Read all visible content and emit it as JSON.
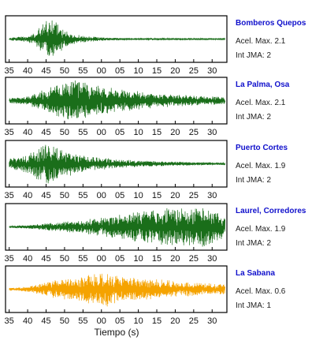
{
  "chart_data": {
    "type": "line",
    "xlabel": "Tiempo (s)",
    "x_ticks": [
      "35",
      "40",
      "45",
      "50",
      "55",
      "00",
      "05",
      "10",
      "15",
      "20",
      "25",
      "30"
    ],
    "series_colors": {
      "green": "#1a6e1a",
      "orange": "#f5a300"
    },
    "panels": [
      {
        "name": "Bomberos Quepos",
        "accel_label": "Acel. Max. 2.1",
        "jma_label": "Int JMA: 2",
        "accel": 2.1,
        "jma": 2,
        "color": "green",
        "envelope": [
          [
            35,
            0.06
          ],
          [
            40,
            0.15
          ],
          [
            42,
            0.3
          ],
          [
            44,
            0.75
          ],
          [
            46,
            1.0
          ],
          [
            48,
            0.8
          ],
          [
            50,
            0.45
          ],
          [
            52,
            0.25
          ],
          [
            56,
            0.15
          ],
          [
            60,
            0.08
          ],
          [
            65,
            0.05
          ],
          [
            93,
            0.04
          ]
        ]
      },
      {
        "name": "La Palma, Osa",
        "accel_label": "Acel. Max. 2.1",
        "jma_label": "Int JMA: 2",
        "accel": 2.1,
        "jma": 2,
        "color": "green",
        "envelope": [
          [
            35,
            0.12
          ],
          [
            40,
            0.22
          ],
          [
            44,
            0.5
          ],
          [
            47,
            0.7
          ],
          [
            50,
            0.9
          ],
          [
            53,
            1.0
          ],
          [
            56,
            0.85
          ],
          [
            60,
            0.7
          ],
          [
            65,
            0.55
          ],
          [
            70,
            0.45
          ],
          [
            75,
            0.35
          ],
          [
            80,
            0.3
          ],
          [
            88,
            0.22
          ],
          [
            93,
            0.18
          ]
        ]
      },
      {
        "name": "Puerto Cortes",
        "accel_label": "Acel. Max. 1.9",
        "jma_label": "Int JMA: 2",
        "accel": 1.9,
        "jma": 2,
        "color": "green",
        "envelope": [
          [
            35,
            0.25
          ],
          [
            40,
            0.45
          ],
          [
            43,
            0.8
          ],
          [
            45,
            1.0
          ],
          [
            48,
            0.8
          ],
          [
            51,
            0.6
          ],
          [
            55,
            0.4
          ],
          [
            60,
            0.3
          ],
          [
            65,
            0.22
          ],
          [
            70,
            0.15
          ],
          [
            80,
            0.1
          ],
          [
            93,
            0.06
          ]
        ]
      },
      {
        "name": "Laurel, Corredores",
        "accel_label": "Acel. Max. 1.9",
        "jma_label": "Int JMA: 2",
        "accel": 1.9,
        "jma": 2,
        "color": "green",
        "envelope": [
          [
            35,
            0.05
          ],
          [
            40,
            0.08
          ],
          [
            45,
            0.18
          ],
          [
            50,
            0.25
          ],
          [
            55,
            0.35
          ],
          [
            60,
            0.45
          ],
          [
            65,
            0.6
          ],
          [
            70,
            0.75
          ],
          [
            75,
            0.85
          ],
          [
            80,
            0.95
          ],
          [
            85,
            0.9
          ],
          [
            88,
            1.0
          ],
          [
            93,
            0.6
          ]
        ]
      },
      {
        "name": "La Sabana",
        "accel_label": "Acel. Max. 0.6",
        "jma_label": "Int JMA: 1",
        "accel": 0.6,
        "jma": 1,
        "color": "orange",
        "envelope": [
          [
            35,
            0.06
          ],
          [
            40,
            0.12
          ],
          [
            44,
            0.3
          ],
          [
            48,
            0.45
          ],
          [
            52,
            0.55
          ],
          [
            56,
            0.7
          ],
          [
            59,
            0.8
          ],
          [
            60,
            1.0
          ],
          [
            62,
            0.8
          ],
          [
            65,
            0.6
          ],
          [
            70,
            0.55
          ],
          [
            75,
            0.5
          ],
          [
            80,
            0.4
          ],
          [
            88,
            0.3
          ],
          [
            93,
            0.25
          ]
        ]
      }
    ]
  }
}
